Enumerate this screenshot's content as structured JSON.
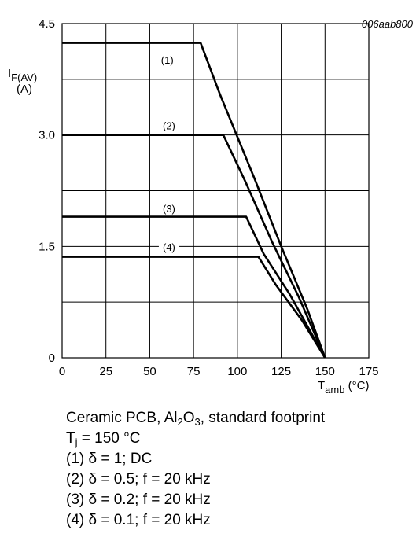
{
  "figure_id": "006aab800",
  "chart_data": {
    "type": "line",
    "ylabel_main": "I",
    "ylabel_sub": "F(AV)",
    "ylabel_unit": "(A)",
    "xlabel_main": "T",
    "xlabel_sub": "amb",
    "xlabel_unit": " (°C)",
    "xlim": [
      0,
      175
    ],
    "ylim": [
      0,
      4.5
    ],
    "x_ticks": [
      "0",
      "25",
      "50",
      "75",
      "100",
      "125",
      "150",
      "175"
    ],
    "y_ticks": [
      {
        "value": 0,
        "label": "0"
      },
      {
        "value": 1.5,
        "label": "1.5"
      },
      {
        "value": 3.0,
        "label": "3.0"
      },
      {
        "value": 4.5,
        "label": "4.5"
      }
    ],
    "grid_x": [
      0,
      25,
      50,
      75,
      100,
      125,
      150,
      175
    ],
    "grid_y": [
      0,
      0.75,
      1.5,
      2.25,
      3.0,
      3.75,
      4.5
    ],
    "grid": true,
    "series": [
      {
        "name": "(1)",
        "label_at": [
          60,
          4.0
        ],
        "points": [
          [
            0,
            4.24
          ],
          [
            79,
            4.24
          ],
          [
            90,
            3.55
          ],
          [
            110,
            2.4
          ],
          [
            125,
            1.5
          ],
          [
            140,
            0.65
          ],
          [
            150,
            0
          ]
        ]
      },
      {
        "name": "(2)",
        "label_at": [
          61,
          3.12
        ],
        "points": [
          [
            0,
            3.0
          ],
          [
            92,
            3.0
          ],
          [
            105,
            2.35
          ],
          [
            120,
            1.55
          ],
          [
            135,
            0.82
          ],
          [
            150,
            0
          ]
        ]
      },
      {
        "name": "(3)",
        "label_at": [
          61,
          2.0
        ],
        "points": [
          [
            0,
            1.9
          ],
          [
            105,
            1.9
          ],
          [
            115,
            1.4
          ],
          [
            130,
            0.85
          ],
          [
            150,
            0
          ]
        ]
      },
      {
        "name": "(4)",
        "label_at": [
          61,
          1.48
        ],
        "points": [
          [
            0,
            1.36
          ],
          [
            112,
            1.36
          ],
          [
            122,
            0.98
          ],
          [
            137,
            0.5
          ],
          [
            150,
            0
          ]
        ]
      }
    ]
  },
  "caption": {
    "line1_pre": "Ceramic PCB, Al",
    "line1_sub1": "2",
    "line1_mid": "O",
    "line1_sub2": "3",
    "line1_post": ", standard footprint",
    "line2_pre": "T",
    "line2_sub": "j",
    "line2_post": " = 150 °C",
    "lines": [
      "(1) δ = 1; DC",
      "(2) δ = 0.5; f = 20 kHz",
      "(3) δ = 0.2; f = 20 kHz",
      "(4) δ = 0.1; f = 20 kHz"
    ]
  }
}
